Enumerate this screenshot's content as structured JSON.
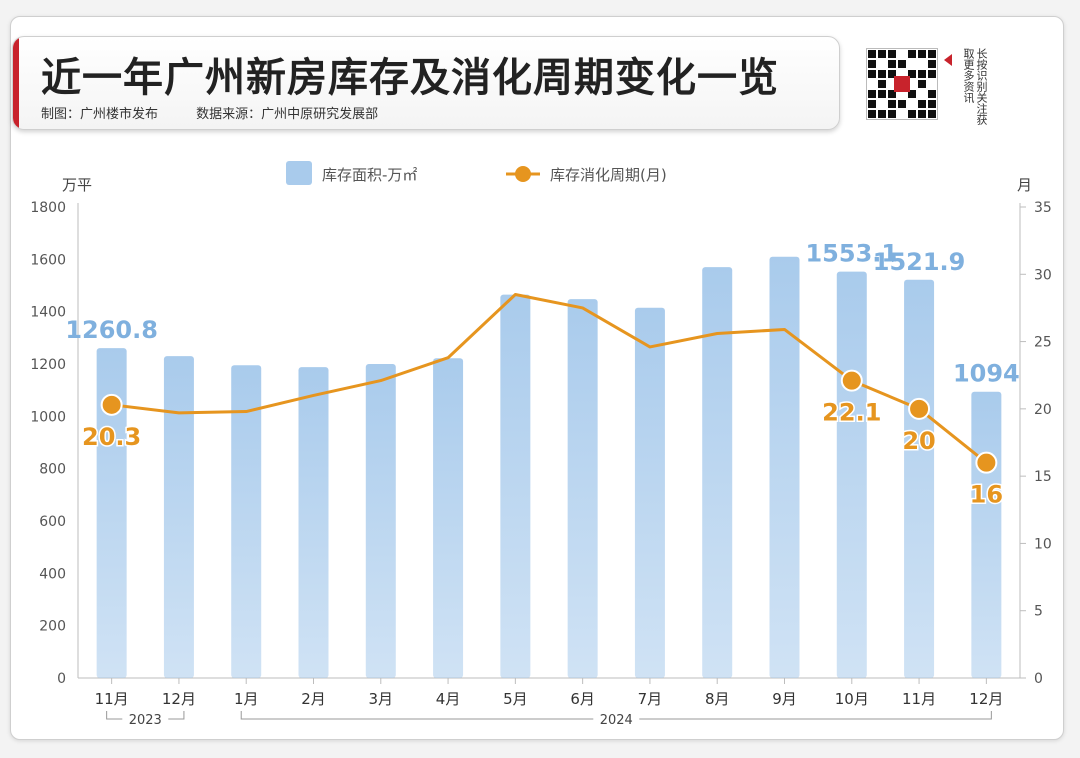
{
  "header": {
    "title": "近一年广州新房库存及消化周期变化一览",
    "credit": "制图：广州楼市发布",
    "source": "数据来源：广州中原研究发展部",
    "qr_caption": "长按识别关注获取更多资讯",
    "qr_icon": "qr-code-icon"
  },
  "colors": {
    "bar": "#a9cbec",
    "line": "#e6951f",
    "bar_label": "#7fb0de",
    "line_label": "#e6951f",
    "accent": "#c8232c"
  },
  "chart_data": {
    "type": "bar",
    "title": "近一年广州新房库存及消化周期变化一览",
    "categories": [
      "11月",
      "12月",
      "1月",
      "2月",
      "3月",
      "4月",
      "5月",
      "6月",
      "7月",
      "8月",
      "9月",
      "10月",
      "11月",
      "12月"
    ],
    "year_groups": [
      {
        "label": "2023",
        "from": 0,
        "to": 1
      },
      {
        "label": "2024",
        "from": 2,
        "to": 13
      }
    ],
    "series": [
      {
        "name": "库存面积-万㎡",
        "type": "bar",
        "axis": "left",
        "values": [
          1260.8,
          1230,
          1195,
          1188,
          1200,
          1222,
          1465,
          1448,
          1415,
          1570,
          1610,
          1553.1,
          1521.9,
          1094
        ],
        "labels": [
          "1260.8",
          "",
          "",
          "",
          "",
          "",
          "",
          "",
          "",
          "",
          "",
          "1553.1",
          "1521.9",
          "1094"
        ]
      },
      {
        "name": "库存消化周期(月)",
        "type": "line",
        "axis": "right",
        "values": [
          20.3,
          19.7,
          19.8,
          21.0,
          22.1,
          23.8,
          28.5,
          27.5,
          24.6,
          25.6,
          25.9,
          22.1,
          20.0,
          16.0
        ],
        "labels": [
          "20.3",
          "",
          "",
          "",
          "",
          "",
          "",
          "",
          "",
          "",
          "",
          "22.1",
          "20",
          "16"
        ]
      }
    ],
    "y_left": {
      "label": "万平",
      "min": 0,
      "max": 1800,
      "ticks": [
        0,
        200,
        400,
        600,
        800,
        1000,
        1200,
        1400,
        1600,
        1800
      ]
    },
    "y_right": {
      "label": "月",
      "min": 0,
      "max": 35,
      "ticks": [
        0,
        5,
        10,
        15,
        20,
        25,
        30,
        35
      ]
    },
    "legend_position": "top-center",
    "grid": false
  }
}
